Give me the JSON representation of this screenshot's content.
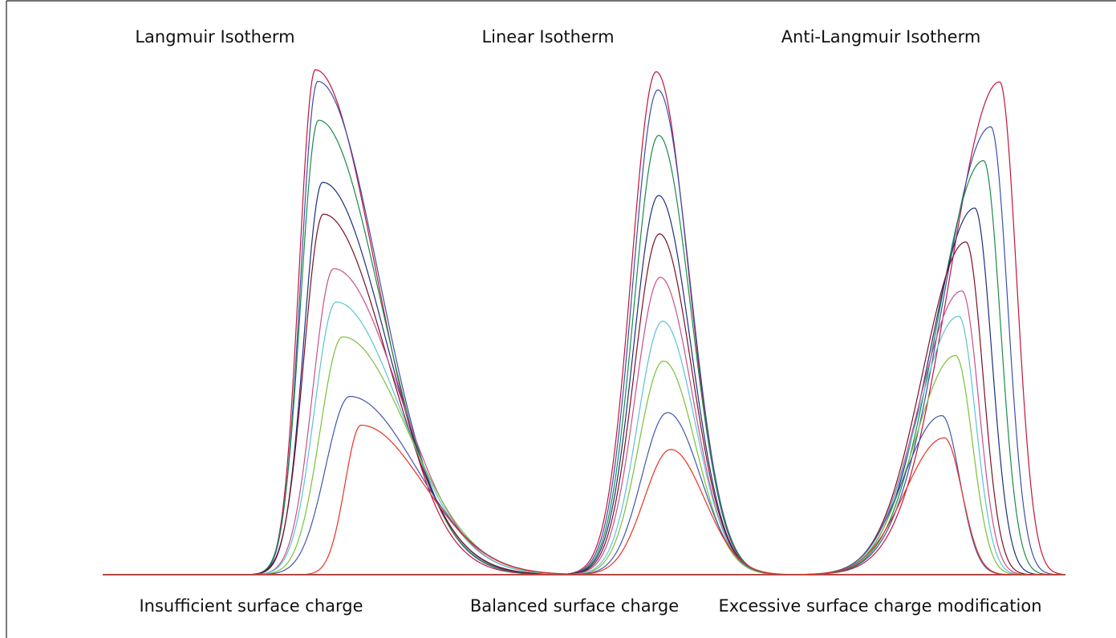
{
  "chart_data": [
    {
      "type": "line",
      "title": "Langmuir Isotherm",
      "caption": "Insufficient surface charge",
      "series": [
        {
          "color": "#c0143c",
          "peak_x": 0.265,
          "peak_height": 1.0,
          "rise_width": 0.02,
          "tail_width": 0.075
        },
        {
          "color": "#3a4fa8",
          "peak_x": 0.268,
          "peak_height": 0.977,
          "rise_width": 0.021,
          "tail_width": 0.076
        },
        {
          "color": "#1a8a4a",
          "peak_x": 0.269,
          "peak_height": 0.9,
          "rise_width": 0.022,
          "tail_width": 0.077
        },
        {
          "color": "#1c2f7a",
          "peak_x": 0.274,
          "peak_height": 0.777,
          "rise_width": 0.023,
          "tail_width": 0.078
        },
        {
          "color": "#7a1024",
          "peak_x": 0.275,
          "peak_height": 0.714,
          "rise_width": 0.024,
          "tail_width": 0.079
        },
        {
          "color": "#c8508a",
          "peak_x": 0.288,
          "peak_height": 0.606,
          "rise_width": 0.026,
          "tail_width": 0.08
        },
        {
          "color": "#5bc3d6",
          "peak_x": 0.291,
          "peak_height": 0.54,
          "rise_width": 0.027,
          "tail_width": 0.08
        },
        {
          "color": "#7bbf3a",
          "peak_x": 0.299,
          "peak_height": 0.471,
          "rise_width": 0.028,
          "tail_width": 0.081
        },
        {
          "color": "#4256a8",
          "peak_x": 0.308,
          "peak_height": 0.353,
          "rise_width": 0.03,
          "tail_width": 0.082
        },
        {
          "color": "#e83222",
          "peak_x": 0.322,
          "peak_height": 0.296,
          "rise_width": 0.02,
          "tail_width": 0.078
        }
      ]
    },
    {
      "type": "line",
      "title": "Linear Isotherm",
      "caption": "Balanced surface charge",
      "series": [
        {
          "color": "#c0143c",
          "peak_x": 0.69,
          "peak_height": 0.996,
          "rise_width": 0.031,
          "tail_width": 0.04
        },
        {
          "color": "#3a4fa8",
          "peak_x": 0.692,
          "peak_height": 0.96,
          "rise_width": 0.031,
          "tail_width": 0.04
        },
        {
          "color": "#1a8a4a",
          "peak_x": 0.693,
          "peak_height": 0.87,
          "rise_width": 0.031,
          "tail_width": 0.04
        },
        {
          "color": "#1c2f7a",
          "peak_x": 0.693,
          "peak_height": 0.751,
          "rise_width": 0.031,
          "tail_width": 0.04
        },
        {
          "color": "#7a1024",
          "peak_x": 0.694,
          "peak_height": 0.675,
          "rise_width": 0.031,
          "tail_width": 0.04
        },
        {
          "color": "#c8508a",
          "peak_x": 0.695,
          "peak_height": 0.589,
          "rise_width": 0.031,
          "tail_width": 0.04
        },
        {
          "color": "#5bc3d6",
          "peak_x": 0.698,
          "peak_height": 0.502,
          "rise_width": 0.031,
          "tail_width": 0.04
        },
        {
          "color": "#7bbf3a",
          "peak_x": 0.699,
          "peak_height": 0.423,
          "rise_width": 0.031,
          "tail_width": 0.04
        },
        {
          "color": "#4256a8",
          "peak_x": 0.704,
          "peak_height": 0.321,
          "rise_width": 0.032,
          "tail_width": 0.041
        },
        {
          "color": "#e83222",
          "peak_x": 0.708,
          "peak_height": 0.248,
          "rise_width": 0.033,
          "tail_width": 0.042
        }
      ]
    },
    {
      "type": "line",
      "title": "Anti-Langmuir Isotherm",
      "caption": "Excessive surface charge modification",
      "series": [
        {
          "color": "#c0143c",
          "peak_x": 1.118,
          "peak_height": 0.976,
          "rise_width": 0.062,
          "tail_width": 0.021
        },
        {
          "color": "#3a4fa8",
          "peak_x": 1.107,
          "peak_height": 0.887,
          "rise_width": 0.06,
          "tail_width": 0.021
        },
        {
          "color": "#1a8a4a",
          "peak_x": 1.098,
          "peak_height": 0.82,
          "rise_width": 0.058,
          "tail_width": 0.021
        },
        {
          "color": "#1c2f7a",
          "peak_x": 1.087,
          "peak_height": 0.726,
          "rise_width": 0.056,
          "tail_width": 0.021
        },
        {
          "color": "#7a1024",
          "peak_x": 1.076,
          "peak_height": 0.659,
          "rise_width": 0.054,
          "tail_width": 0.021
        },
        {
          "color": "#c8508a",
          "peak_x": 1.071,
          "peak_height": 0.562,
          "rise_width": 0.053,
          "tail_width": 0.021
        },
        {
          "color": "#5bc3d6",
          "peak_x": 1.067,
          "peak_height": 0.512,
          "rise_width": 0.052,
          "tail_width": 0.021
        },
        {
          "color": "#7bbf3a",
          "peak_x": 1.063,
          "peak_height": 0.434,
          "rise_width": 0.051,
          "tail_width": 0.021
        },
        {
          "color": "#4256a8",
          "peak_x": 1.046,
          "peak_height": 0.315,
          "rise_width": 0.048,
          "tail_width": 0.022
        },
        {
          "color": "#e83222",
          "peak_x": 1.049,
          "peak_height": 0.271,
          "rise_width": 0.049,
          "tail_width": 0.022
        }
      ]
    }
  ]
}
